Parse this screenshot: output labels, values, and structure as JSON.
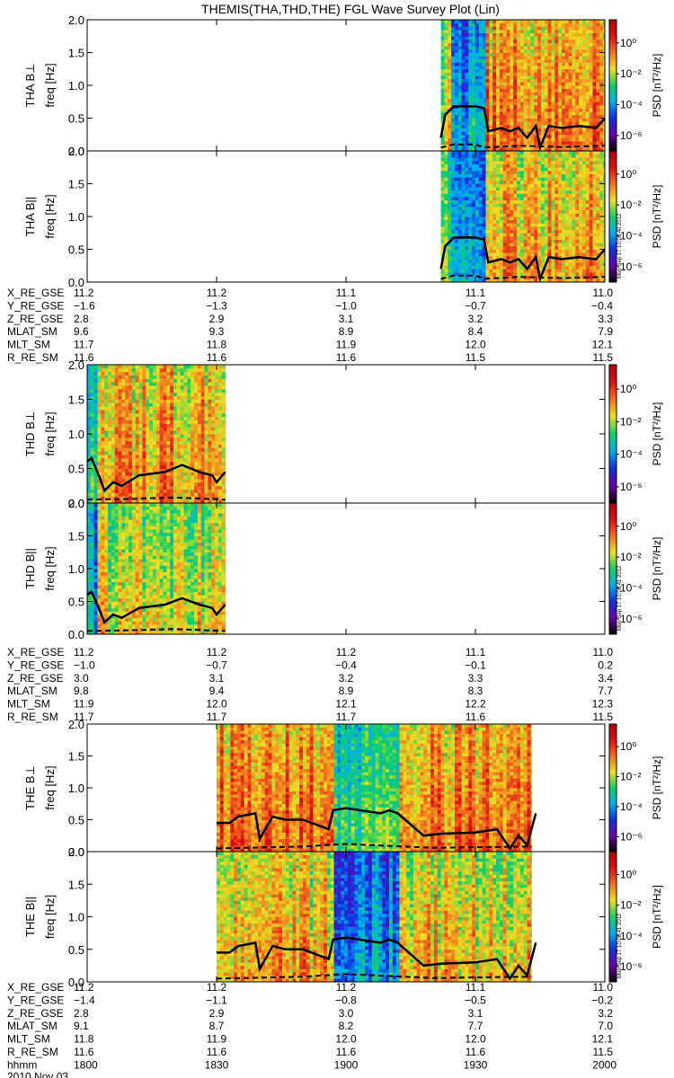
{
  "title": "THEMIS(THA,THD,THE) FGL Wave Survey Plot (Lin)",
  "colorbar": {
    "label": "PSD [nT²/Hz]",
    "ticks": [
      "10⁰",
      "10⁻²",
      "10⁻⁴",
      "10⁻⁶"
    ],
    "tick_exponents": [
      0,
      -2,
      -4,
      -6
    ],
    "range_exponent": [
      -7,
      1.5
    ],
    "colors": [
      "#000000",
      "#6a00a8",
      "#1030e0",
      "#00b0f0",
      "#10d060",
      "#f0e020",
      "#f07020",
      "#e01010",
      "#b00000"
    ]
  },
  "stamps": [
    "Mon Sep 17 10:08:40 2012",
    "Mon Sep 17 10:08:41 2012",
    "Mon Sep 17 10:08:41 2012"
  ],
  "freq_axis": {
    "label": "freq [Hz]",
    "ticks": [
      "2.0",
      "1.5",
      "1.0",
      "0.5",
      "0.0"
    ],
    "values": [
      2.0,
      1.5,
      1.0,
      0.5,
      0.0
    ],
    "ylim": [
      0,
      2.0
    ]
  },
  "time_axis": {
    "xlim_minutes": [
      1080,
      1200
    ],
    "ticks": [
      "1800",
      "1830",
      "1900",
      "1930",
      "2000"
    ],
    "tick_minutes": [
      1080,
      1110,
      1140,
      1170,
      1200
    ],
    "label": "hhmm",
    "date": "2010 Nov 03"
  },
  "probes": [
    {
      "id": "THA",
      "panels": [
        {
          "label": "THA B⊥"
        },
        {
          "label": "THA B||"
        }
      ],
      "coverage_minutes": [
        1162,
        1200
      ],
      "ephemeris": [
        {
          "name": "X_RE_GSE",
          "values": [
            "11.2",
            "11.2",
            "11.1",
            "11.1",
            "11.0"
          ]
        },
        {
          "name": "Y_RE_GSE",
          "values": [
            "−1.6",
            "−1.3",
            "−1.0",
            "−0.7",
            "−0.4"
          ]
        },
        {
          "name": "Z_RE_GSE",
          "values": [
            "2.8",
            "2.9",
            "3.1",
            "3.2",
            "3.3"
          ]
        },
        {
          "name": "MLAT_SM",
          "values": [
            "9.6",
            "9.3",
            "8.9",
            "8.4",
            "7.9"
          ]
        },
        {
          "name": "MLT_SM",
          "values": [
            "11.7",
            "11.8",
            "11.9",
            "12.0",
            "12.1"
          ]
        },
        {
          "name": "R_RE_SM",
          "values": [
            "11.6",
            "11.6",
            "11.6",
            "11.5",
            "11.5"
          ]
        }
      ]
    },
    {
      "id": "THD",
      "panels": [
        {
          "label": "THD B⊥"
        },
        {
          "label": "THD B||"
        }
      ],
      "coverage_minutes": [
        1080,
        1112
      ],
      "ephemeris": [
        {
          "name": "X_RE_GSE",
          "values": [
            "11.2",
            "11.2",
            "11.2",
            "11.1",
            "11.0"
          ]
        },
        {
          "name": "Y_RE_GSE",
          "values": [
            "−1.0",
            "−0.7",
            "−0.4",
            "−0.1",
            "0.2"
          ]
        },
        {
          "name": "Z_RE_GSE",
          "values": [
            "3.0",
            "3.1",
            "3.2",
            "3.3",
            "3.4"
          ]
        },
        {
          "name": "MLAT_SM",
          "values": [
            "9.8",
            "9.4",
            "8.9",
            "8.3",
            "7.7"
          ]
        },
        {
          "name": "MLT_SM",
          "values": [
            "11.9",
            "12.0",
            "12.1",
            "12.2",
            "12.3"
          ]
        },
        {
          "name": "R_RE_SM",
          "values": [
            "11.7",
            "11.7",
            "11.7",
            "11.6",
            "11.5"
          ]
        }
      ]
    },
    {
      "id": "THE",
      "panels": [
        {
          "label": "THE B⊥"
        },
        {
          "label": "THE B||"
        }
      ],
      "coverage_minutes": [
        1110,
        1183
      ],
      "ephemeris": [
        {
          "name": "X_RE_GSE",
          "values": [
            "11.2",
            "11.2",
            "11.2",
            "11.1",
            "11.0"
          ]
        },
        {
          "name": "Y_RE_GSE",
          "values": [
            "−1.4",
            "−1.1",
            "−0.8",
            "−0.5",
            "−0.2"
          ]
        },
        {
          "name": "Z_RE_GSE",
          "values": [
            "2.8",
            "2.9",
            "3.0",
            "3.1",
            "3.2"
          ]
        },
        {
          "name": "MLAT_SM",
          "values": [
            "9.1",
            "8.7",
            "8.2",
            "7.7",
            "7.0"
          ]
        },
        {
          "name": "MLT_SM",
          "values": [
            "11.8",
            "11.9",
            "12.0",
            "12.0",
            "12.1"
          ]
        },
        {
          "name": "R_RE_SM",
          "values": [
            "11.6",
            "11.6",
            "11.6",
            "11.6",
            "11.5"
          ]
        }
      ]
    }
  ],
  "chart_data": {
    "type": "heatmap",
    "title": "THEMIS(THA,THD,THE) FGL Wave Survey Plot (Lin)",
    "xlabel": "hhmm",
    "ylabel": "freq [Hz]",
    "ylim": [
      0,
      2.0
    ],
    "xlim": [
      "1800",
      "2000"
    ],
    "x_ticks": [
      "1800",
      "1830",
      "1900",
      "1930",
      "2000"
    ],
    "colorbar_label": "PSD [nT²/Hz]",
    "colorbar_scale": "log",
    "panels": [
      {
        "label": "THA B⊥",
        "coverage_minutes": [
          1162,
          1200
        ],
        "segments": [
          {
            "range_minutes": [
              1162,
              1164
            ],
            "log_psd": -1.5
          },
          {
            "range_minutes": [
              1164,
              1172
            ],
            "log_psd": -3.5
          },
          {
            "range_minutes": [
              1172,
              1200
            ],
            "log_psd": -0.5
          }
        ],
        "overlay_solid": {
          "x_minutes": [
            1162,
            1163,
            1165,
            1170,
            1172,
            1173,
            1176,
            1178,
            1180,
            1182,
            1184,
            1185,
            1187,
            1190,
            1194,
            1198,
            1200
          ],
          "y_hz": [
            0.2,
            0.55,
            0.68,
            0.68,
            0.65,
            0.3,
            0.35,
            0.3,
            0.35,
            0.2,
            0.38,
            0.05,
            0.38,
            0.35,
            0.38,
            0.35,
            0.5
          ]
        },
        "overlay_dashed": {
          "x_minutes": [
            1162,
            1165,
            1170,
            1172,
            1180,
            1190,
            1200
          ],
          "y_hz": [
            0.05,
            0.1,
            0.1,
            0.05,
            0.08,
            0.06,
            0.08
          ]
        }
      },
      {
        "label": "THA B||",
        "coverage_minutes": [
          1162,
          1200
        ],
        "segments": [
          {
            "range_minutes": [
              1162,
              1164
            ],
            "log_psd": -2
          },
          {
            "range_minutes": [
              1164,
              1172
            ],
            "log_psd": -4
          },
          {
            "range_minutes": [
              1172,
              1200
            ],
            "log_psd": -1
          }
        ],
        "overlay_solid": {
          "x_minutes": [
            1162,
            1163,
            1165,
            1170,
            1172,
            1173,
            1176,
            1178,
            1180,
            1182,
            1184,
            1185,
            1187,
            1190,
            1194,
            1198,
            1200
          ],
          "y_hz": [
            0.2,
            0.55,
            0.68,
            0.68,
            0.65,
            0.3,
            0.35,
            0.3,
            0.35,
            0.2,
            0.38,
            0.05,
            0.38,
            0.35,
            0.38,
            0.35,
            0.5
          ]
        },
        "overlay_dashed": {
          "x_minutes": [
            1162,
            1165,
            1170,
            1172,
            1180,
            1190,
            1200
          ],
          "y_hz": [
            0.05,
            0.1,
            0.1,
            0.05,
            0.08,
            0.06,
            0.08
          ]
        }
      },
      {
        "label": "THD B⊥",
        "coverage_minutes": [
          1080,
          1112
        ],
        "segments": [
          {
            "range_minutes": [
              1080,
              1082
            ],
            "log_psd": -2.5
          },
          {
            "range_minutes": [
              1082,
              1112
            ],
            "log_psd": -0.8
          }
        ],
        "overlay_solid": {
          "x_minutes": [
            1080,
            1081,
            1083,
            1084,
            1086,
            1088,
            1092,
            1098,
            1102,
            1106,
            1109,
            1110,
            1112
          ],
          "y_hz": [
            0.6,
            0.65,
            0.35,
            0.18,
            0.3,
            0.25,
            0.4,
            0.45,
            0.55,
            0.45,
            0.4,
            0.3,
            0.45
          ]
        },
        "overlay_dashed": {
          "x_minutes": [
            1080,
            1090,
            1100,
            1112
          ],
          "y_hz": [
            0.05,
            0.06,
            0.08,
            0.05
          ]
        }
      },
      {
        "label": "THD B||",
        "coverage_minutes": [
          1080,
          1112
        ],
        "segments": [
          {
            "range_minutes": [
              1080,
              1082
            ],
            "log_psd": -3.5
          },
          {
            "range_minutes": [
              1082,
              1112
            ],
            "log_psd": -1.5
          }
        ],
        "overlay_solid": {
          "x_minutes": [
            1080,
            1081,
            1083,
            1084,
            1086,
            1088,
            1092,
            1098,
            1102,
            1106,
            1109,
            1110,
            1112
          ],
          "y_hz": [
            0.6,
            0.65,
            0.35,
            0.18,
            0.3,
            0.25,
            0.4,
            0.45,
            0.55,
            0.45,
            0.4,
            0.3,
            0.45
          ]
        },
        "overlay_dashed": {
          "x_minutes": [
            1080,
            1090,
            1100,
            1112
          ],
          "y_hz": [
            0.05,
            0.06,
            0.08,
            0.05
          ]
        }
      },
      {
        "label": "THE B⊥",
        "coverage_minutes": [
          1110,
          1183
        ],
        "segments": [
          {
            "range_minutes": [
              1110,
              1137
            ],
            "log_psd": -0.3
          },
          {
            "range_minutes": [
              1137,
              1152
            ],
            "log_psd": -2.8
          },
          {
            "range_minutes": [
              1152,
              1183
            ],
            "log_psd": -0.5
          }
        ],
        "overlay_solid": {
          "x_minutes": [
            1110,
            1113,
            1115,
            1119,
            1120,
            1123,
            1126,
            1130,
            1136,
            1137,
            1140,
            1148,
            1150,
            1152,
            1158,
            1162,
            1170,
            1175,
            1178,
            1180,
            1182,
            1184
          ],
          "y_hz": [
            0.45,
            0.45,
            0.55,
            0.6,
            0.2,
            0.55,
            0.5,
            0.5,
            0.35,
            0.65,
            0.68,
            0.6,
            0.65,
            0.6,
            0.25,
            0.28,
            0.3,
            0.35,
            0.05,
            0.25,
            0.1,
            0.6
          ]
        },
        "overlay_dashed": {
          "x_minutes": [
            1110,
            1130,
            1140,
            1160,
            1183
          ],
          "y_hz": [
            0.05,
            0.08,
            0.12,
            0.06,
            0.08
          ]
        }
      },
      {
        "label": "THE B||",
        "coverage_minutes": [
          1110,
          1183
        ],
        "segments": [
          {
            "range_minutes": [
              1110,
              1137
            ],
            "log_psd": -1
          },
          {
            "range_minutes": [
              1137,
              1152
            ],
            "log_psd": -3.8
          },
          {
            "range_minutes": [
              1152,
              1183
            ],
            "log_psd": -1.2
          }
        ],
        "overlay_solid": {
          "x_minutes": [
            1110,
            1113,
            1115,
            1119,
            1120,
            1123,
            1126,
            1130,
            1136,
            1137,
            1140,
            1148,
            1150,
            1152,
            1158,
            1162,
            1170,
            1175,
            1178,
            1180,
            1182,
            1184
          ],
          "y_hz": [
            0.45,
            0.45,
            0.55,
            0.6,
            0.2,
            0.55,
            0.5,
            0.5,
            0.35,
            0.65,
            0.68,
            0.6,
            0.65,
            0.6,
            0.25,
            0.28,
            0.3,
            0.35,
            0.05,
            0.25,
            0.1,
            0.6
          ]
        },
        "overlay_dashed": {
          "x_minutes": [
            1110,
            1130,
            1140,
            1160,
            1183
          ],
          "y_hz": [
            0.05,
            0.08,
            0.12,
            0.06,
            0.08
          ]
        }
      }
    ]
  }
}
